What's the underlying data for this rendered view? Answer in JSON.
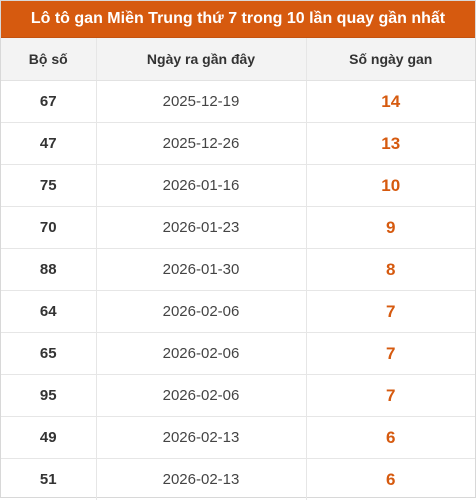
{
  "title": "Lô tô gan Miền Trung thứ 7 trong 10 lần quay gần nhất",
  "headers": [
    "Bộ số",
    "Ngày ra gần đây",
    "Số ngày gan"
  ],
  "rows": [
    {
      "number": "67",
      "date": "2025-12-19",
      "days": "14"
    },
    {
      "number": "47",
      "date": "2025-12-26",
      "days": "13"
    },
    {
      "number": "75",
      "date": "2026-01-16",
      "days": "10"
    },
    {
      "number": "70",
      "date": "2026-01-23",
      "days": "9"
    },
    {
      "number": "88",
      "date": "2026-01-30",
      "days": "8"
    },
    {
      "number": "64",
      "date": "2026-02-06",
      "days": "7"
    },
    {
      "number": "65",
      "date": "2026-02-06",
      "days": "7"
    },
    {
      "number": "95",
      "date": "2026-02-06",
      "days": "7"
    },
    {
      "number": "49",
      "date": "2026-02-13",
      "days": "6"
    },
    {
      "number": "51",
      "date": "2026-02-13",
      "days": "6"
    }
  ],
  "colors": {
    "accent": "#d65a0f",
    "header_bg": "#f3f3f3"
  }
}
